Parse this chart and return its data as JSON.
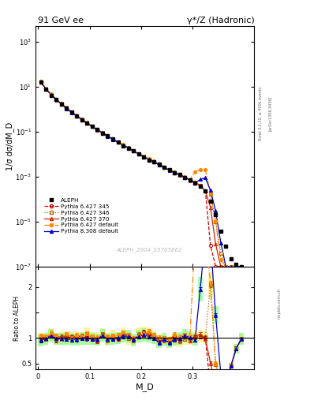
{
  "title_left": "91 GeV ee",
  "title_right": "γ*/Z (Hadronic)",
  "ylabel_main": "1/σ dσ/dM_D",
  "ylabel_ratio": "Ratio to ALEPH",
  "xlabel": "M_D",
  "watermark": "ALEPH_2004_S5765862",
  "right_label_top": "Rivet 3.1.10, ≥ 400k events",
  "right_label_bot": "[arXiv:1306.3436]",
  "right_label_site": "mcplots.cern.ch",
  "ylim_main": [
    1e-07,
    5000
  ],
  "ylim_ratio": [
    0.38,
    2.4
  ],
  "xlim": [
    -0.005,
    0.42
  ],
  "legend_entries": [
    "ALEPH",
    "Pythia 6.427 345",
    "Pythia 6.427 346",
    "Pythia 6.427 370",
    "Pythia 6.427 default",
    "Pythia 8.308 default"
  ],
  "aleph_color": "#000000",
  "p345_color": "#cc0000",
  "p346_color": "#aa6600",
  "p370_color": "#cc2200",
  "pdef_color": "#ff8800",
  "p8def_color": "#0000cc",
  "band_345_color": "#ffaaaa",
  "band_346_color": "#ffee88",
  "band_p8_color": "#88ff88",
  "ratio_line_color": "#000000"
}
